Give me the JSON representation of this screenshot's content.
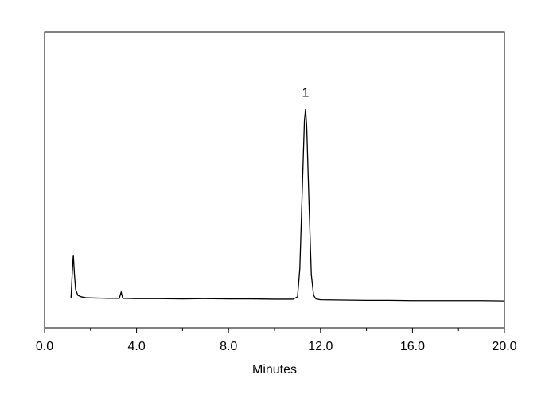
{
  "chart_data": {
    "type": "line",
    "xlabel": "Minutes",
    "x": [
      1.15,
      1.2,
      1.25,
      1.3,
      1.35,
      1.45,
      1.6,
      1.8,
      2.2,
      2.8,
      3.25,
      3.33,
      3.4,
      4.0,
      5.0,
      6.0,
      7.0,
      8.0,
      9.0,
      10.0,
      10.8,
      11.0,
      11.1,
      11.2,
      11.3,
      11.35,
      11.4,
      11.5,
      11.6,
      11.7,
      11.8,
      12.0,
      13.0,
      14.0,
      15.0,
      16.0,
      17.0,
      18.0,
      19.0,
      20.0
    ],
    "series": [
      {
        "color": "#000000",
        "values": [
          10.0,
          18,
          24.7,
          18,
          13,
          11,
          10.5,
          10.2,
          10.1,
          10.0,
          10.0,
          12.1,
          10.0,
          9.9,
          9.9,
          9.8,
          9.9,
          9.8,
          9.8,
          9.7,
          9.7,
          10.5,
          20,
          45,
          70,
          73.9,
          68,
          42,
          18,
          11,
          9.8,
          9.5,
          9.4,
          9.3,
          9.3,
          9.2,
          9.2,
          9.2,
          9.2,
          9.1
        ]
      }
    ],
    "xlim": [
      0,
      20
    ],
    "ylim": [
      0,
      100
    ],
    "xticks": [
      {
        "value": 0,
        "label": "0.0"
      },
      {
        "value": 4,
        "label": "4.0"
      },
      {
        "value": 8,
        "label": "8.0"
      },
      {
        "value": 12,
        "label": "12.0"
      },
      {
        "value": 16,
        "label": "16.0"
      },
      {
        "value": 20,
        "label": "20.0"
      }
    ],
    "xminorticks": [
      2,
      6,
      10,
      14,
      18
    ],
    "annotations": [
      {
        "text": "1",
        "x": 11.35,
        "y": 73.9
      }
    ]
  }
}
